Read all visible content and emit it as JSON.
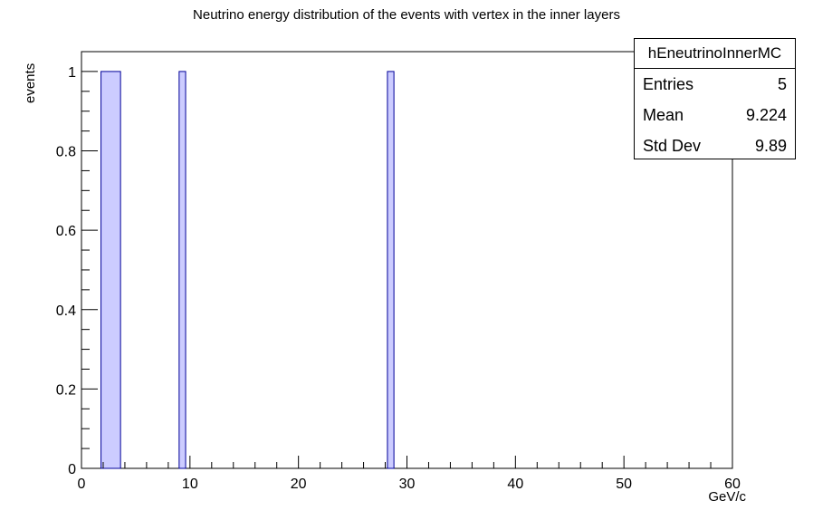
{
  "chart_data": {
    "type": "bar",
    "title": "Neutrino energy distribution of the events with vertex in the inner layers",
    "xlabel": "GeV/c",
    "ylabel": "events",
    "xlim": [
      0,
      60
    ],
    "ylim": [
      0,
      1.05
    ],
    "x_ticks": [
      "0",
      "10",
      "20",
      "30",
      "40",
      "50",
      "60"
    ],
    "y_ticks": [
      "0",
      "0.2",
      "0.4",
      "0.6",
      "0.8",
      "1"
    ],
    "bins": [
      {
        "x0": 1.8,
        "x1": 3.6,
        "value": 1
      },
      {
        "x0": 9.0,
        "x1": 9.6,
        "value": 1
      },
      {
        "x0": 28.2,
        "x1": 28.8,
        "value": 1
      }
    ],
    "colors": {
      "fill": "#ccccff",
      "line": "#000099"
    }
  },
  "stats": {
    "name": "hEneutrinoInnerMC",
    "entries_label": "Entries",
    "entries_value": "5",
    "mean_label": "Mean",
    "mean_value": "9.224",
    "std_label": "Std Dev",
    "std_value": "9.89"
  }
}
